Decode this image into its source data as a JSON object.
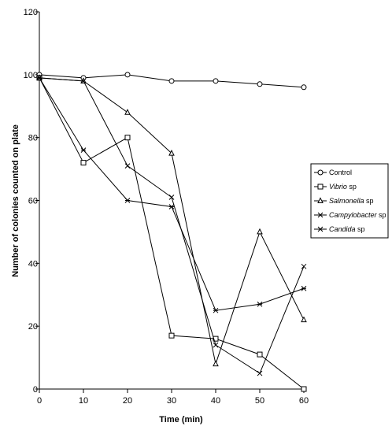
{
  "chart_data": {
    "type": "line",
    "title": "",
    "xlabel": "Time (min)",
    "ylabel": "Number of colonies counted on plate",
    "xlim": [
      0,
      60
    ],
    "ylim": [
      0,
      120
    ],
    "x_ticks": [
      "0",
      "10",
      "20",
      "30",
      "40",
      "50",
      "60"
    ],
    "y_ticks": [
      "0",
      "20",
      "40",
      "60",
      "80",
      "100",
      "120"
    ],
    "grid": false,
    "legend_position": "right",
    "series": [
      {
        "name": "Control",
        "name_plain": "",
        "name_italic": "",
        "marker": "circle",
        "x": [
          0,
          10,
          20,
          30,
          40,
          50,
          60
        ],
        "y": [
          100,
          99,
          100,
          98,
          98,
          97,
          96
        ]
      },
      {
        "name": "Vibrio sp",
        "name_plain": "",
        "name_italic": "Vibrio",
        "marker": "square",
        "x": [
          0,
          10,
          20,
          30,
          40,
          50,
          60
        ],
        "y": [
          99,
          72,
          80,
          17,
          16,
          11,
          0
        ]
      },
      {
        "name": "Salmonella sp",
        "name_plain": "",
        "name_italic": "Salmonella",
        "marker": "triangle",
        "x": [
          0,
          10,
          20,
          30,
          40,
          50,
          60
        ],
        "y": [
          99,
          98,
          88,
          75,
          8,
          50,
          22
        ]
      },
      {
        "name": "Campylobacter sp",
        "name_plain": "",
        "name_italic": "Campylobacter",
        "marker": "x",
        "x": [
          0,
          10,
          20,
          30,
          40,
          50,
          60
        ],
        "y": [
          99,
          98,
          71,
          61,
          14,
          5,
          39
        ]
      },
      {
        "name": "Candida sp",
        "name_plain": "",
        "name_italic": "Candida",
        "marker": "star",
        "x": [
          0,
          10,
          20,
          30,
          40,
          50,
          60
        ],
        "y": [
          99,
          76,
          60,
          58,
          25,
          27,
          32
        ]
      }
    ]
  }
}
